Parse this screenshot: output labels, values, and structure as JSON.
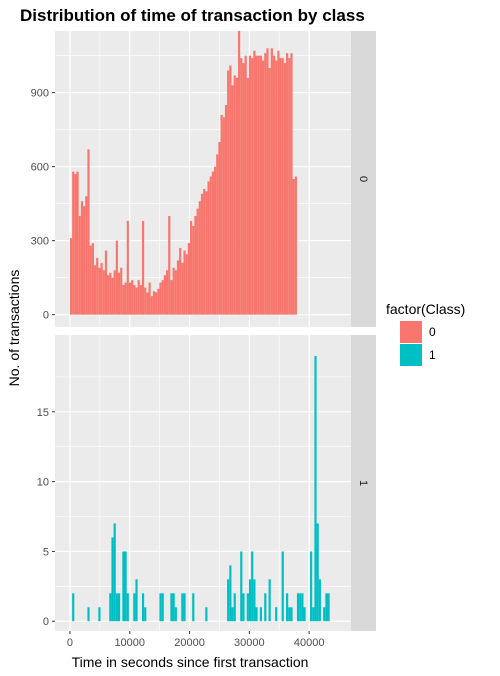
{
  "chart_data": {
    "type": "histogram",
    "title": "Distribution of time of transaction by class",
    "xlabel": "Time in seconds since first transaction",
    "ylabel": "No. of transactions",
    "x_ticks": [
      0,
      10000,
      20000,
      30000,
      40000
    ],
    "xlim": [
      -2500,
      47000
    ],
    "bin_width": 365,
    "bin_start": 0,
    "colors": {
      "0": "#F8766D",
      "1": "#00BFC4"
    },
    "legend": {
      "title": "factor(Class)",
      "placement": "right",
      "items": [
        {
          "label": "0",
          "color": "#F8766D"
        },
        {
          "label": "1",
          "color": "#00BFC4"
        }
      ]
    },
    "facets": [
      {
        "strip": "0",
        "ylim": [
          -50,
          1150
        ],
        "y_ticks": [
          0,
          300,
          600,
          900
        ],
        "values": [
          310,
          580,
          570,
          580,
          400,
          460,
          440,
          480,
          670,
          280,
          290,
          200,
          230,
          190,
          210,
          180,
          260,
          160,
          170,
          150,
          180,
          300,
          170,
          190,
          120,
          130,
          380,
          130,
          140,
          120,
          110,
          140,
          120,
          380,
          110,
          90,
          130,
          75,
          95,
          90,
          105,
          130,
          140,
          160,
          180,
          400,
          140,
          190,
          180,
          220,
          270,
          210,
          260,
          245,
          290,
          380,
          360,
          400,
          430,
          460,
          490,
          510,
          500,
          540,
          560,
          580,
          600,
          650,
          700,
          810,
          800,
          850,
          990,
          1010,
          930,
          970,
          960,
          1150,
          1040,
          1020,
          1050,
          960,
          1050,
          1040,
          1070,
          1050,
          1050,
          1050,
          1030,
          1060,
          1080,
          1000,
          1080,
          1050,
          1030,
          1070,
          1040,
          1040,
          1020,
          1060,
          1040,
          1060,
          550,
          560
        ]
      },
      {
        "strip": "1",
        "ylim": [
          -0.7,
          20.5
        ],
        "y_ticks": [
          0,
          5,
          10,
          15
        ],
        "values": [
          0,
          2,
          0,
          0,
          0,
          0,
          0,
          0,
          1,
          0,
          0,
          0,
          0,
          1,
          0,
          0,
          0,
          0,
          2,
          6,
          7,
          2,
          2,
          0,
          5,
          5,
          2,
          0,
          0,
          2,
          3,
          0,
          0,
          2,
          1,
          0,
          0,
          0,
          0,
          0,
          0,
          2,
          2,
          0,
          0,
          0,
          2,
          2,
          1,
          0,
          0,
          2,
          2,
          0,
          0,
          0,
          2,
          0,
          0,
          0,
          0,
          0,
          1,
          0,
          0,
          0,
          0,
          0,
          0,
          0,
          0,
          0,
          3,
          4,
          1,
          2,
          0,
          0,
          5,
          2,
          0,
          2,
          3,
          5,
          3,
          1,
          0,
          1,
          0,
          2,
          0,
          3,
          0,
          0,
          1,
          0,
          0,
          5,
          0,
          2,
          1,
          1,
          0,
          0,
          2,
          2,
          2,
          1,
          0,
          0,
          5,
          1,
          19,
          7,
          3,
          0,
          1,
          2,
          2,
          0,
          0,
          0
        ]
      }
    ]
  }
}
